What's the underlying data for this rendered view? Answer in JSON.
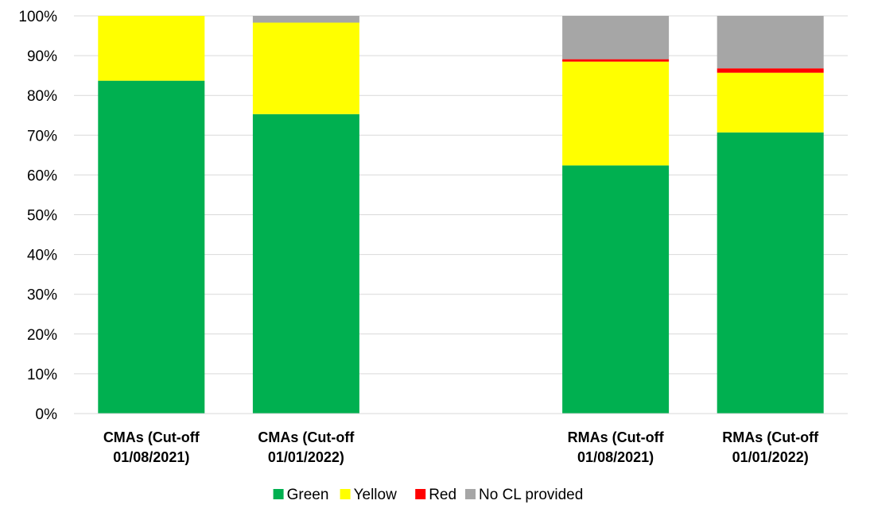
{
  "chart_data": {
    "type": "bar",
    "stacked": true,
    "title": "",
    "xlabel": "",
    "ylabel": "",
    "categories": [
      [
        "CMAs (Cut-off",
        "01/08/2021)"
      ],
      [
        "CMAs (Cut-off",
        "01/01/2022)"
      ],
      [
        "",
        ""
      ],
      [
        "RMAs (Cut-off",
        "01/08/2021)"
      ],
      [
        "RMAs (Cut-off",
        "01/01/2022)"
      ]
    ],
    "series": [
      {
        "name": "Green",
        "color": "#00B050",
        "values": [
          83.7,
          75.3,
          null,
          62.4,
          70.7
        ]
      },
      {
        "name": "Yellow",
        "color": "#FFFF00",
        "values": [
          16.3,
          23.0,
          null,
          26.1,
          15.0
        ]
      },
      {
        "name": "Red",
        "color": "#FF0000",
        "values": [
          0,
          0,
          null,
          0.6,
          1.1
        ]
      },
      {
        "name": "No CL provided",
        "color": "#A6A6A6",
        "values": [
          0,
          1.7,
          null,
          10.9,
          13.2
        ]
      }
    ],
    "ylim": [
      0,
      100
    ],
    "yticks": [
      "0%",
      "10%",
      "20%",
      "30%",
      "40%",
      "50%",
      "60%",
      "70%",
      "80%",
      "90%",
      "100%"
    ],
    "grid": true,
    "legend_position": "bottom"
  }
}
